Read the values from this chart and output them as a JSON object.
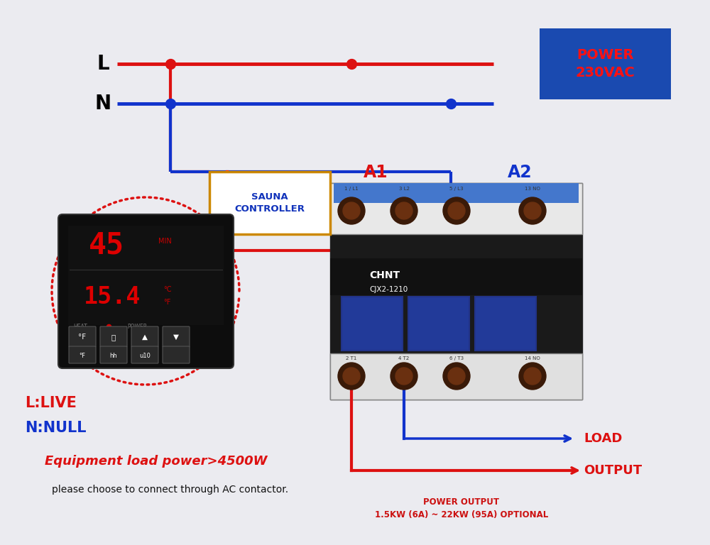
{
  "bg_color": "#ebebf0",
  "red_wire": "#dd1111",
  "blue_wire": "#1133cc",
  "power_box_bg": "#1a4ab0",
  "power_box_text": "#ff1111",
  "power_box_label": "POWER\n230VAC",
  "sauna_box_border": "#cc8800",
  "sauna_box_label": "SAUNA\nCONTROLLER",
  "L_label": "L",
  "N_label": "N",
  "A1_label": "A1",
  "A2_label": "A2",
  "L_live_label": "L:LIVE",
  "N_null_label": "N:NULL",
  "load_blue_label": "LOAD",
  "load_red_label": "OUTPUT",
  "eq_label": "Equipment load power>4500W",
  "please_label": "please choose to connect through AC contactor.",
  "power_output_label": "POWER OUTPUT\n1.5KW (6A) ~ 22KW (95A) OPTIONAL",
  "chnt_label": "CHNT",
  "cjx_label": "CJX2-1210",
  "top_term_labels": [
    "1 / L1",
    "3 L2",
    "5 / L3",
    "13 NO"
  ],
  "bot_term_labels": [
    "2 T1",
    "4 T2",
    "6 / T3",
    "14 NO"
  ]
}
